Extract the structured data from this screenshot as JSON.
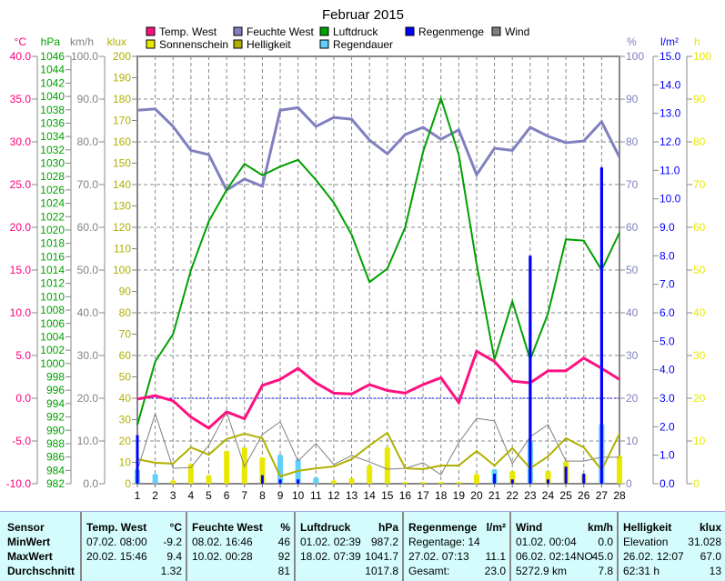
{
  "chart_data": {
    "type": "line",
    "title": "Februar 2015",
    "x": [
      1,
      2,
      3,
      4,
      5,
      6,
      7,
      8,
      9,
      10,
      11,
      12,
      13,
      14,
      15,
      16,
      17,
      18,
      19,
      20,
      21,
      22,
      23,
      24,
      25,
      26,
      27,
      28
    ],
    "axes": {
      "temp": {
        "unit": "°C",
        "range": [
          -10,
          40
        ],
        "step": 5,
        "color": "#ff0080"
      },
      "pressure": {
        "unit": "hPa",
        "range": [
          982,
          1046
        ],
        "step": 2,
        "color": "#00a000"
      },
      "wind": {
        "unit": "km/h",
        "range": [
          0,
          100
        ],
        "step": 10,
        "color": "#808080"
      },
      "light": {
        "unit": "klux",
        "range": [
          0,
          200
        ],
        "step": 10,
        "color": "#b0b000"
      },
      "humidity": {
        "unit": "%",
        "range": [
          0,
          100
        ],
        "step": 10,
        "color": "#8080c0"
      },
      "rain": {
        "unit": "l/m²",
        "range": [
          0,
          15
        ],
        "step": 1,
        "color": "#0000ff"
      },
      "hours": {
        "unit": "h",
        "range": [
          0,
          100
        ],
        "step": 10,
        "color": "#e8e800"
      }
    },
    "grid": true,
    "legend_placement": "top",
    "series": [
      {
        "name": "Temp. West",
        "type": "line",
        "axis": "temp",
        "color": "#ff1080",
        "values": [
          -0.1,
          0.3,
          -0.3,
          -2.2,
          -3.5,
          -1.6,
          -2.4,
          1.5,
          2.2,
          3.5,
          1.8,
          0.6,
          0.5,
          1.6,
          0.9,
          0.6,
          1.6,
          2.4,
          -0.5,
          5.5,
          4.3,
          2.0,
          1.8,
          3.2,
          3.2,
          4.7,
          3.5,
          2.2
        ]
      },
      {
        "name": "Feuchte West",
        "type": "line",
        "axis": "humidity",
        "color": "#8080c0",
        "values": [
          87.4,
          87.7,
          83.6,
          78,
          77,
          68.7,
          71.3,
          69.6,
          87.4,
          88,
          83.6,
          85.7,
          85.3,
          80.4,
          77.2,
          81.7,
          83.4,
          80.6,
          82.8,
          72.3,
          78.5,
          78,
          83.4,
          81.3,
          79.8,
          80.2,
          84.7,
          76.4
        ]
      },
      {
        "name": "Luftdruck",
        "type": "line",
        "axis": "pressure",
        "color": "#00a000",
        "values": [
          990.8,
          1000.3,
          1004.4,
          1014,
          1021.3,
          1026,
          1029.9,
          1028.2,
          1029.5,
          1030.5,
          1027.5,
          1024.1,
          1019.3,
          1012.2,
          1014.2,
          1020.4,
          1031.7,
          1039.7,
          1031.3,
          1014.9,
          1000.6,
          1009.3,
          1000.6,
          1007.5,
          1018.6,
          1018.4,
          1014,
          1019.6
        ]
      },
      {
        "name": "Regenmenge",
        "type": "bar",
        "axis": "rain",
        "color": "#0000ff",
        "values": [
          1.7,
          0,
          0,
          0,
          0,
          0,
          0,
          0.3,
          0.15,
          0.15,
          0,
          0,
          0,
          0,
          0,
          0,
          0,
          0,
          0,
          0,
          0.35,
          0.15,
          8.0,
          0.15,
          0.6,
          0.35,
          11.1,
          0
        ]
      },
      {
        "name": "Wind",
        "type": "line",
        "axis": "wind",
        "color": "#808080",
        "values": [
          3.2,
          16.4,
          3.6,
          3.8,
          9,
          16.8,
          4,
          11.5,
          14.5,
          5.3,
          9.4,
          4.5,
          6.6,
          5.1,
          3.4,
          3.6,
          4.9,
          2.1,
          9.6,
          15.3,
          14.7,
          4.7,
          11,
          13.8,
          5.3,
          5.3,
          6.2,
          6.2
        ]
      },
      {
        "name": "Sonnenschein",
        "type": "bar",
        "axis": "hours",
        "color": "#e8e800",
        "values": [
          2,
          1,
          0.8,
          4.7,
          2,
          7.7,
          8.5,
          6.2,
          0,
          0,
          1.3,
          0.8,
          1.3,
          4.3,
          8.5,
          0.4,
          0.4,
          0.4,
          0.4,
          2.3,
          0,
          3,
          0,
          3,
          5.3,
          2.3,
          0,
          6.6
        ]
      },
      {
        "name": "Helligkeit",
        "type": "line",
        "axis": "light",
        "color": "#b0b000",
        "values": [
          11.5,
          9.8,
          9.4,
          17,
          13.6,
          20.9,
          23.4,
          21.3,
          3.4,
          6,
          7.2,
          8.1,
          11.5,
          17.9,
          23.8,
          7.2,
          6.8,
          8.5,
          8.5,
          15.3,
          8.5,
          16.6,
          7.2,
          12.8,
          21.3,
          17,
          6.4,
          23.4
        ]
      },
      {
        "name": "Regendauer",
        "type": "bar",
        "axis": "hours",
        "color": "#60d0ff",
        "values": [
          3.4,
          2.3,
          0,
          0,
          0,
          0,
          0,
          0,
          6.8,
          5.7,
          1.5,
          0,
          0,
          0,
          0,
          0,
          0,
          0,
          0,
          0,
          3.4,
          0,
          10,
          0,
          0,
          0,
          14,
          0
        ]
      }
    ]
  },
  "table": {
    "row_labels": [
      "Sensor",
      "MinWert",
      "MaxWert",
      "Durchschnitt"
    ],
    "columns": [
      {
        "title": "Temp. West",
        "unit": "°C",
        "rows": [
          [
            "07.02.  08:00",
            "-9.2"
          ],
          [
            "20.02.  15:46",
            "9.4"
          ],
          [
            "",
            "1.32"
          ]
        ]
      },
      {
        "title": "Feuchte West",
        "unit": "%",
        "rows": [
          [
            "08.02.  16:46",
            "46"
          ],
          [
            "10.02.  00:28",
            "92"
          ],
          [
            "",
            "81"
          ]
        ]
      },
      {
        "title": "Luftdruck",
        "unit": "hPa",
        "rows": [
          [
            "01.02.  02:39",
            "987.2"
          ],
          [
            "18.02.  07:39",
            "1041.7"
          ],
          [
            "",
            "1017.8"
          ]
        ]
      },
      {
        "title": "Regenmenge",
        "unit": "l/m²",
        "rows": [
          [
            "Regentage: 14",
            ""
          ],
          [
            "27.02.  07:13",
            "11.1"
          ],
          [
            "Gesamt:",
            "23.0"
          ]
        ]
      },
      {
        "title": "Wind",
        "unit": "km/h",
        "rows": [
          [
            "01.02.  00:04",
            "0.0"
          ],
          [
            "06.02.  02:14NO",
            "45.0"
          ],
          [
            "5272.9 km",
            "7.8"
          ]
        ]
      },
      {
        "title": "Helligkeit",
        "unit": "klux",
        "rows": [
          [
            "Elevation",
            "31.028"
          ],
          [
            "26.02.  12:07",
            "67.0"
          ],
          [
            "62:31 h",
            "13"
          ]
        ]
      }
    ]
  }
}
